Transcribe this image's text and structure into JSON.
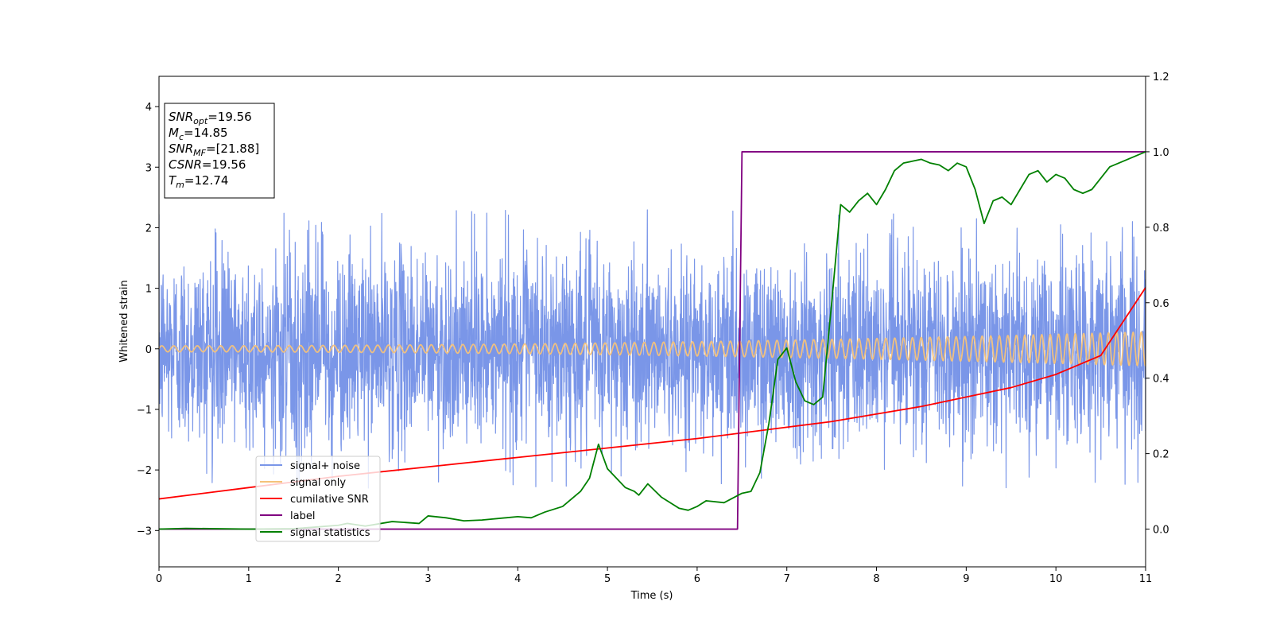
{
  "chart_data": {
    "type": "line",
    "title": "",
    "xlabel": "Time (s)",
    "ylabel": "Whitened strain",
    "xlim": [
      0,
      11
    ],
    "ylim": [
      -3.6,
      4.5
    ],
    "y2lim": [
      -0.1,
      1.2
    ],
    "x_ticks": [
      "0",
      "1",
      "2",
      "3",
      "4",
      "5",
      "6",
      "7",
      "8",
      "9",
      "10",
      "11"
    ],
    "y_ticks": [
      "−3",
      "−2",
      "−1",
      "0",
      "1",
      "2",
      "3",
      "4"
    ],
    "y2_ticks": [
      "0.0",
      "0.2",
      "0.4",
      "0.6",
      "0.8",
      "1.0",
      "1.2"
    ],
    "grid": false,
    "legend_position": "lower-left",
    "annotation": [
      {
        "base": "SNR",
        "sub": "opt",
        "value": "=19.56"
      },
      {
        "base": "M",
        "sub": "c",
        "value": "=14.85"
      },
      {
        "base": "SNR",
        "sub": "MF",
        "value": "=[21.88]"
      },
      {
        "base": "CSNR",
        "sub": "",
        "value": "=19.56"
      },
      {
        "base": "T",
        "sub": "m",
        "value": "=12.74"
      }
    ],
    "series": [
      {
        "name": "signal+ noise",
        "color": "#7a96e8",
        "axis": "left",
        "kind": "noise",
        "std": 0.8,
        "max_abs": 2.3,
        "duration": 11
      },
      {
        "name": "signal only",
        "color": "#f5c27a",
        "axis": "left",
        "kind": "chirp",
        "amplitude_start": 0.05,
        "amplitude_end": 0.28,
        "cycles_per_second_start": 7.5,
        "cycles_per_second_end": 11
      },
      {
        "name": "cumilative SNR",
        "color": "#ff0000",
        "axis": "right",
        "x": [
          0,
          1,
          2,
          3,
          4,
          5,
          6,
          7,
          7.5,
          8,
          8.5,
          9,
          9.5,
          10,
          10.5,
          11
        ],
        "y": [
          0.08,
          0.11,
          0.14,
          0.165,
          0.19,
          0.215,
          0.24,
          0.27,
          0.285,
          0.305,
          0.325,
          0.35,
          0.375,
          0.41,
          0.46,
          0.64
        ]
      },
      {
        "name": "label",
        "color": "#800080",
        "axis": "right",
        "x": [
          0,
          6.45,
          6.5,
          11
        ],
        "y": [
          0,
          0,
          1,
          1
        ]
      },
      {
        "name": "signal statistics",
        "color": "#008000",
        "axis": "right",
        "x": [
          0,
          0.3,
          1.0,
          1.5,
          2.0,
          2.1,
          2.3,
          2.6,
          2.9,
          3.0,
          3.2,
          3.4,
          3.6,
          4.0,
          4.15,
          4.3,
          4.5,
          4.7,
          4.8,
          4.9,
          5.0,
          5.2,
          5.3,
          5.35,
          5.45,
          5.6,
          5.8,
          5.9,
          6.0,
          6.1,
          6.3,
          6.5,
          6.6,
          6.7,
          6.8,
          6.9,
          7.0,
          7.1,
          7.2,
          7.3,
          7.4,
          7.5,
          7.6,
          7.7,
          7.8,
          7.9,
          8.0,
          8.1,
          8.2,
          8.3,
          8.4,
          8.5,
          8.6,
          8.7,
          8.8,
          8.9,
          9.0,
          9.1,
          9.2,
          9.3,
          9.4,
          9.5,
          9.6,
          9.7,
          9.8,
          9.9,
          10.0,
          10.1,
          10.2,
          10.3,
          10.4,
          10.5,
          10.6,
          10.7,
          10.8,
          10.9,
          11.0
        ],
        "y": [
          0.0,
          0.002,
          0.0,
          0.001,
          0.01,
          0.015,
          0.008,
          0.02,
          0.015,
          0.035,
          0.03,
          0.022,
          0.024,
          0.033,
          0.03,
          0.045,
          0.06,
          0.1,
          0.135,
          0.225,
          0.16,
          0.11,
          0.1,
          0.09,
          0.12,
          0.085,
          0.055,
          0.05,
          0.06,
          0.075,
          0.07,
          0.095,
          0.1,
          0.15,
          0.28,
          0.45,
          0.48,
          0.39,
          0.34,
          0.33,
          0.35,
          0.6,
          0.86,
          0.84,
          0.87,
          0.89,
          0.86,
          0.9,
          0.95,
          0.97,
          0.975,
          0.98,
          0.97,
          0.965,
          0.95,
          0.97,
          0.96,
          0.9,
          0.81,
          0.87,
          0.88,
          0.86,
          0.9,
          0.94,
          0.95,
          0.92,
          0.94,
          0.93,
          0.9,
          0.89,
          0.9,
          0.93,
          0.96,
          0.97,
          0.98,
          0.99,
          1.0
        ]
      }
    ]
  }
}
